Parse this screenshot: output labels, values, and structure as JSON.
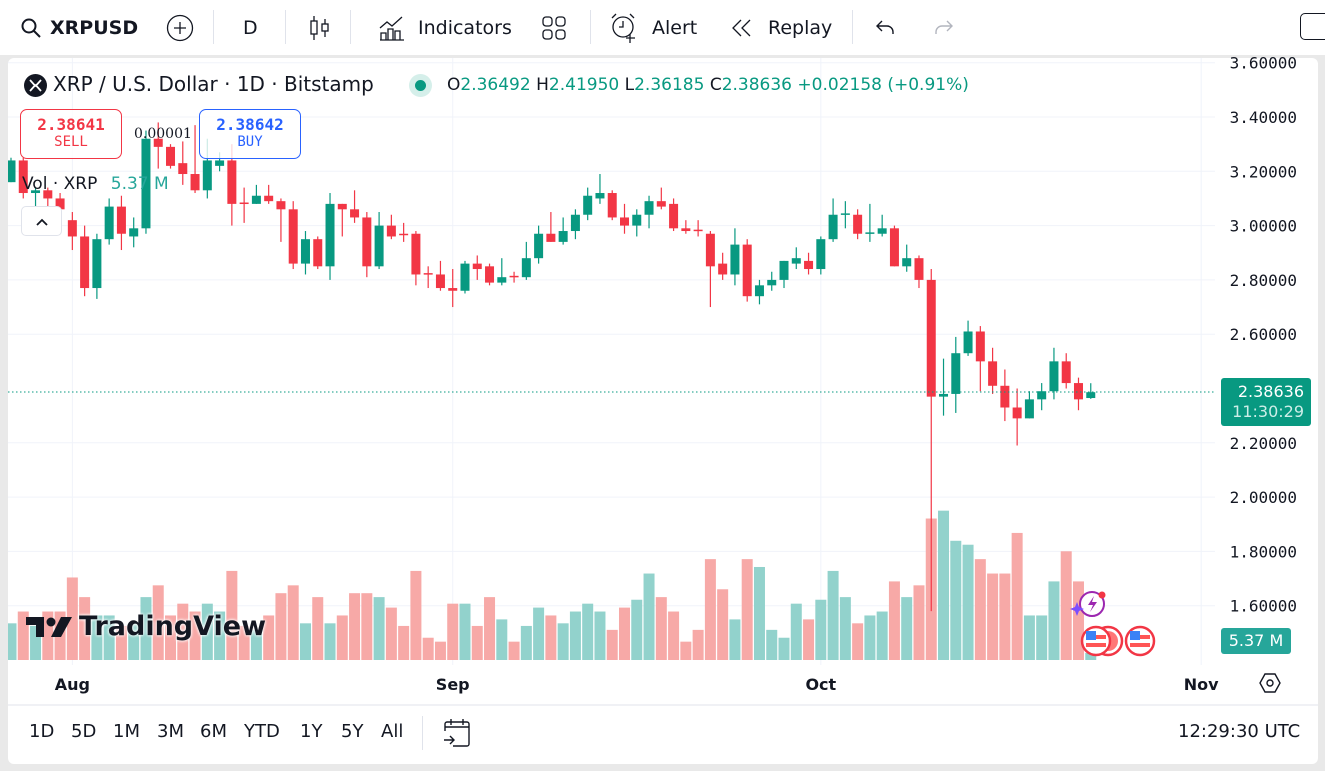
{
  "toolbar": {
    "symbol": "XRPUSD",
    "interval": "D",
    "indicators_label": "Indicators",
    "alert_label": "Alert",
    "replay_label": "Replay"
  },
  "legend": {
    "title": "XRP / U.S. Dollar · 1D · Bitstamp",
    "o_label": "O",
    "o": "2.36492",
    "h_label": "H",
    "h": "2.41950",
    "l_label": "L",
    "l": "2.36185",
    "c_label": "C",
    "c": "2.38636",
    "change": "+0.02158 (+0.91%)",
    "sell_price": "2.38641",
    "sell_label": "SELL",
    "spread": "0.00001",
    "buy_price": "2.38642",
    "buy_label": "BUY",
    "vol_label": "Vol · XRP",
    "vol_value": "5.37 M"
  },
  "price_axis": {
    "ticks": [
      {
        "value": 3.6,
        "label": "3.60000"
      },
      {
        "value": 3.4,
        "label": "3.40000"
      },
      {
        "value": 3.2,
        "label": "3.20000"
      },
      {
        "value": 3.0,
        "label": "3.00000"
      },
      {
        "value": 2.8,
        "label": "2.80000"
      },
      {
        "value": 2.6,
        "label": "2.60000"
      },
      {
        "value": 2.2,
        "label": "2.20000"
      },
      {
        "value": 2.0,
        "label": "2.00000"
      },
      {
        "value": 1.8,
        "label": "1.80000"
      },
      {
        "value": 1.6,
        "label": "1.60000"
      }
    ],
    "last_price": "2.38636",
    "countdown": "11:30:29",
    "volume_label": "5.37 M"
  },
  "watermark": "TradingView",
  "bottom_bar": {
    "ranges": [
      "1D",
      "5D",
      "1M",
      "3M",
      "6M",
      "YTD",
      "1Y",
      "5Y",
      "All"
    ],
    "clock": "12:29:30 UTC"
  },
  "colors": {
    "up": "#089981",
    "down": "#f23645",
    "vol_up": "#92d2cc",
    "vol_down": "#f7a9a7",
    "buy": "#2962ff"
  },
  "chart_data": {
    "type": "candlestick",
    "title": "XRP / U.S. Dollar · 1D · Bitstamp",
    "x_labels": [
      {
        "index": 5,
        "label": "Aug"
      },
      {
        "index": 36,
        "label": "Sep"
      },
      {
        "index": 66,
        "label": "Oct"
      },
      {
        "index": 97,
        "label": "Nov"
      }
    ],
    "ylim": [
      1.55,
      3.62
    ],
    "ohlc": [
      [
        3.16,
        3.25,
        3.16,
        3.24
      ],
      [
        3.24,
        3.25,
        3.1,
        3.12
      ],
      [
        3.12,
        3.14,
        3.07,
        3.13
      ],
      [
        3.13,
        3.14,
        3.07,
        3.1
      ],
      [
        3.1,
        3.12,
        3.02,
        3.06
      ],
      [
        3.02,
        3.05,
        2.91,
        2.96
      ],
      [
        2.96,
        3.0,
        2.74,
        2.77
      ],
      [
        2.77,
        2.97,
        2.73,
        2.95
      ],
      [
        2.95,
        3.1,
        2.93,
        3.07
      ],
      [
        3.07,
        3.11,
        2.91,
        2.97
      ],
      [
        2.96,
        3.03,
        2.92,
        2.99
      ],
      [
        2.99,
        3.35,
        2.97,
        3.32
      ],
      [
        3.32,
        3.38,
        3.21,
        3.29
      ],
      [
        3.29,
        3.3,
        3.21,
        3.22
      ],
      [
        3.23,
        3.31,
        3.15,
        3.19
      ],
      [
        3.19,
        3.37,
        3.12,
        3.13
      ],
      [
        3.13,
        3.32,
        3.1,
        3.24
      ],
      [
        3.22,
        3.27,
        3.2,
        3.24
      ],
      [
        3.24,
        3.3,
        3.0,
        3.08
      ],
      [
        3.085,
        3.14,
        3.01,
        3.08
      ],
      [
        3.08,
        3.15,
        3.08,
        3.11
      ],
      [
        3.11,
        3.15,
        3.08,
        3.09
      ],
      [
        3.09,
        3.1,
        2.94,
        3.06
      ],
      [
        3.06,
        3.09,
        2.84,
        2.86
      ],
      [
        2.86,
        2.98,
        2.82,
        2.95
      ],
      [
        2.95,
        2.96,
        2.84,
        2.85
      ],
      [
        2.85,
        3.12,
        2.8,
        3.08
      ],
      [
        3.08,
        3.08,
        2.96,
        3.06
      ],
      [
        3.06,
        3.13,
        3.01,
        3.03
      ],
      [
        3.03,
        3.05,
        2.81,
        2.85
      ],
      [
        2.85,
        3.05,
        2.84,
        3.0
      ],
      [
        3.0,
        3.04,
        2.95,
        2.96
      ],
      [
        2.97,
        3.01,
        2.94,
        2.965
      ],
      [
        2.97,
        2.98,
        2.78,
        2.82
      ],
      [
        2.825,
        2.85,
        2.77,
        2.82
      ],
      [
        2.82,
        2.87,
        2.76,
        2.77
      ],
      [
        2.77,
        2.84,
        2.7,
        2.76
      ],
      [
        2.76,
        2.87,
        2.75,
        2.86
      ],
      [
        2.86,
        2.89,
        2.8,
        2.84
      ],
      [
        2.85,
        2.86,
        2.78,
        2.79
      ],
      [
        2.79,
        2.88,
        2.78,
        2.81
      ],
      [
        2.815,
        2.83,
        2.79,
        2.81
      ],
      [
        2.81,
        2.94,
        2.8,
        2.88
      ],
      [
        2.88,
        3.0,
        2.86,
        2.97
      ],
      [
        2.97,
        3.05,
        2.94,
        2.94
      ],
      [
        2.94,
        3.03,
        2.93,
        2.98
      ],
      [
        2.98,
        3.06,
        2.95,
        3.04
      ],
      [
        3.04,
        3.14,
        3.02,
        3.11
      ],
      [
        3.1,
        3.19,
        3.08,
        3.12
      ],
      [
        3.12,
        3.13,
        3.02,
        3.03
      ],
      [
        3.03,
        3.08,
        2.97,
        3.0
      ],
      [
        3.0,
        3.06,
        2.96,
        3.04
      ],
      [
        3.04,
        3.11,
        2.99,
        3.09
      ],
      [
        3.09,
        3.14,
        3.06,
        3.07
      ],
      [
        3.08,
        3.1,
        2.98,
        2.99
      ],
      [
        2.99,
        3.02,
        2.97,
        2.98
      ],
      [
        2.985,
        3.02,
        2.96,
        2.98
      ],
      [
        2.97,
        2.98,
        2.7,
        2.85
      ],
      [
        2.86,
        2.9,
        2.8,
        2.82
      ],
      [
        2.82,
        2.99,
        2.78,
        2.93
      ],
      [
        2.93,
        2.95,
        2.72,
        2.74
      ],
      [
        2.74,
        2.8,
        2.71,
        2.78
      ],
      [
        2.78,
        2.83,
        2.76,
        2.8
      ],
      [
        2.8,
        2.87,
        2.77,
        2.87
      ],
      [
        2.86,
        2.92,
        2.84,
        2.88
      ],
      [
        2.87,
        2.9,
        2.82,
        2.84
      ],
      [
        2.84,
        2.96,
        2.82,
        2.95
      ],
      [
        2.95,
        3.1,
        2.94,
        3.04
      ],
      [
        3.04,
        3.09,
        2.99,
        3.045
      ],
      [
        3.04,
        3.06,
        2.95,
        2.97
      ],
      [
        2.97,
        3.08,
        2.94,
        2.975
      ],
      [
        2.97,
        3.04,
        2.96,
        2.99
      ],
      [
        2.99,
        3.0,
        2.85,
        2.85
      ],
      [
        2.85,
        2.93,
        2.83,
        2.88
      ],
      [
        2.88,
        2.89,
        2.77,
        2.8
      ],
      [
        2.8,
        2.84,
        1.58,
        2.37
      ],
      [
        2.37,
        2.51,
        2.3,
        2.38
      ],
      [
        2.38,
        2.59,
        2.31,
        2.53
      ],
      [
        2.53,
        2.65,
        2.52,
        2.61
      ],
      [
        2.61,
        2.63,
        2.39,
        2.5
      ],
      [
        2.5,
        2.55,
        2.38,
        2.41
      ],
      [
        2.41,
        2.47,
        2.28,
        2.33
      ],
      [
        2.33,
        2.4,
        2.19,
        2.29
      ],
      [
        2.29,
        2.39,
        2.29,
        2.36
      ],
      [
        2.36,
        2.42,
        2.32,
        2.39
      ],
      [
        2.39,
        2.55,
        2.36,
        2.5
      ],
      [
        2.5,
        2.53,
        2.4,
        2.42
      ],
      [
        2.42,
        2.44,
        2.32,
        2.36
      ],
      [
        2.36492,
        2.4195,
        2.36185,
        2.38636
      ]
    ],
    "volume_millions": [
      28,
      37,
      26,
      37,
      37,
      63,
      48,
      34,
      34,
      26,
      28,
      48,
      57,
      34,
      43,
      37,
      43,
      37,
      68,
      26,
      23,
      34,
      51,
      57,
      28,
      48,
      28,
      34,
      51,
      51,
      48,
      40,
      26,
      68,
      17,
      14,
      43,
      43,
      26,
      48,
      31,
      14,
      26,
      40,
      34,
      28,
      37,
      43,
      37,
      23,
      40,
      46,
      66,
      48,
      37,
      14,
      23,
      77,
      54,
      31,
      77,
      71,
      23,
      17,
      43,
      31,
      46,
      68,
      48,
      28,
      34,
      37,
      60,
      48,
      57,
      108,
      114,
      91,
      88,
      77,
      66,
      66,
      97,
      34,
      34,
      60,
      83,
      60,
      5.37
    ]
  }
}
